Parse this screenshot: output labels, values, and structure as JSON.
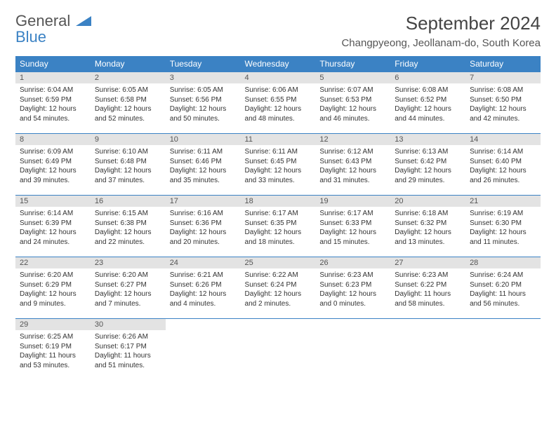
{
  "logo": {
    "line1": "General",
    "line2": "Blue"
  },
  "title": "September 2024",
  "location": "Changpyeong, Jeollanam-do, South Korea",
  "weekdays": [
    "Sunday",
    "Monday",
    "Tuesday",
    "Wednesday",
    "Thursday",
    "Friday",
    "Saturday"
  ],
  "colors": {
    "header_bg": "#3b82c4",
    "header_text": "#ffffff",
    "daynum_bg": "#e3e3e3",
    "text": "#333333",
    "rule": "#3b82c4"
  },
  "weeks": [
    [
      {
        "n": "1",
        "sr": "6:04 AM",
        "ss": "6:59 PM",
        "dl": "12 hours and 54 minutes."
      },
      {
        "n": "2",
        "sr": "6:05 AM",
        "ss": "6:58 PM",
        "dl": "12 hours and 52 minutes."
      },
      {
        "n": "3",
        "sr": "6:05 AM",
        "ss": "6:56 PM",
        "dl": "12 hours and 50 minutes."
      },
      {
        "n": "4",
        "sr": "6:06 AM",
        "ss": "6:55 PM",
        "dl": "12 hours and 48 minutes."
      },
      {
        "n": "5",
        "sr": "6:07 AM",
        "ss": "6:53 PM",
        "dl": "12 hours and 46 minutes."
      },
      {
        "n": "6",
        "sr": "6:08 AM",
        "ss": "6:52 PM",
        "dl": "12 hours and 44 minutes."
      },
      {
        "n": "7",
        "sr": "6:08 AM",
        "ss": "6:50 PM",
        "dl": "12 hours and 42 minutes."
      }
    ],
    [
      {
        "n": "8",
        "sr": "6:09 AM",
        "ss": "6:49 PM",
        "dl": "12 hours and 39 minutes."
      },
      {
        "n": "9",
        "sr": "6:10 AM",
        "ss": "6:48 PM",
        "dl": "12 hours and 37 minutes."
      },
      {
        "n": "10",
        "sr": "6:11 AM",
        "ss": "6:46 PM",
        "dl": "12 hours and 35 minutes."
      },
      {
        "n": "11",
        "sr": "6:11 AM",
        "ss": "6:45 PM",
        "dl": "12 hours and 33 minutes."
      },
      {
        "n": "12",
        "sr": "6:12 AM",
        "ss": "6:43 PM",
        "dl": "12 hours and 31 minutes."
      },
      {
        "n": "13",
        "sr": "6:13 AM",
        "ss": "6:42 PM",
        "dl": "12 hours and 29 minutes."
      },
      {
        "n": "14",
        "sr": "6:14 AM",
        "ss": "6:40 PM",
        "dl": "12 hours and 26 minutes."
      }
    ],
    [
      {
        "n": "15",
        "sr": "6:14 AM",
        "ss": "6:39 PM",
        "dl": "12 hours and 24 minutes."
      },
      {
        "n": "16",
        "sr": "6:15 AM",
        "ss": "6:38 PM",
        "dl": "12 hours and 22 minutes."
      },
      {
        "n": "17",
        "sr": "6:16 AM",
        "ss": "6:36 PM",
        "dl": "12 hours and 20 minutes."
      },
      {
        "n": "18",
        "sr": "6:17 AM",
        "ss": "6:35 PM",
        "dl": "12 hours and 18 minutes."
      },
      {
        "n": "19",
        "sr": "6:17 AM",
        "ss": "6:33 PM",
        "dl": "12 hours and 15 minutes."
      },
      {
        "n": "20",
        "sr": "6:18 AM",
        "ss": "6:32 PM",
        "dl": "12 hours and 13 minutes."
      },
      {
        "n": "21",
        "sr": "6:19 AM",
        "ss": "6:30 PM",
        "dl": "12 hours and 11 minutes."
      }
    ],
    [
      {
        "n": "22",
        "sr": "6:20 AM",
        "ss": "6:29 PM",
        "dl": "12 hours and 9 minutes."
      },
      {
        "n": "23",
        "sr": "6:20 AM",
        "ss": "6:27 PM",
        "dl": "12 hours and 7 minutes."
      },
      {
        "n": "24",
        "sr": "6:21 AM",
        "ss": "6:26 PM",
        "dl": "12 hours and 4 minutes."
      },
      {
        "n": "25",
        "sr": "6:22 AM",
        "ss": "6:24 PM",
        "dl": "12 hours and 2 minutes."
      },
      {
        "n": "26",
        "sr": "6:23 AM",
        "ss": "6:23 PM",
        "dl": "12 hours and 0 minutes."
      },
      {
        "n": "27",
        "sr": "6:23 AM",
        "ss": "6:22 PM",
        "dl": "11 hours and 58 minutes."
      },
      {
        "n": "28",
        "sr": "6:24 AM",
        "ss": "6:20 PM",
        "dl": "11 hours and 56 minutes."
      }
    ],
    [
      {
        "n": "29",
        "sr": "6:25 AM",
        "ss": "6:19 PM",
        "dl": "11 hours and 53 minutes."
      },
      {
        "n": "30",
        "sr": "6:26 AM",
        "ss": "6:17 PM",
        "dl": "11 hours and 51 minutes."
      },
      null,
      null,
      null,
      null,
      null
    ]
  ],
  "labels": {
    "sunrise": "Sunrise: ",
    "sunset": "Sunset: ",
    "daylight": "Daylight: "
  }
}
